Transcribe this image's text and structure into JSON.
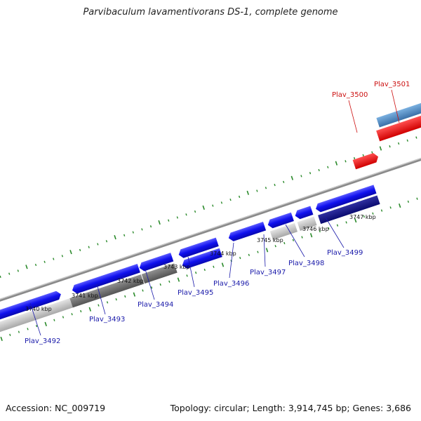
{
  "title": "Parvibaculum lavamentivorans DS-1, complete genome",
  "footer": {
    "accession": "Accession: NC_009719",
    "topology": "Topology: circular; Length: 3,914,745 bp; Genes: 3,686"
  },
  "colors": {
    "forward_gene": "#1010ee",
    "forward_gene_dark": "#0a0a80",
    "grey_gene": "#c0c0c0",
    "grey_gene_dark": "#6a6a6a",
    "highlight_gene": "#ee1010",
    "light_blue_gene": "#4a86c0",
    "label_blue": "#1a1aaa",
    "label_red": "#cc1111",
    "tick_green": "#2a8a2a",
    "backbone": "#888888"
  },
  "kbp_labels": [
    "3740 kbp",
    "3741 kbp",
    "3742 kbp",
    "3743 kbp",
    "3744 kbp",
    "3745 kbp",
    "3746 kbp",
    "3747 kbp"
  ],
  "gene_labels": [
    {
      "id": "Plav_3492",
      "color": "blue"
    },
    {
      "id": "Plav_3493",
      "color": "blue"
    },
    {
      "id": "Plav_3494",
      "color": "blue"
    },
    {
      "id": "Plav_3495",
      "color": "blue"
    },
    {
      "id": "Plav_3496",
      "color": "blue"
    },
    {
      "id": "Plav_3497",
      "color": "blue"
    },
    {
      "id": "Plav_3498",
      "color": "blue"
    },
    {
      "id": "Plav_3499",
      "color": "blue"
    },
    {
      "id": "Plav_3500",
      "color": "red"
    },
    {
      "id": "Plav_3501",
      "color": "red"
    }
  ]
}
